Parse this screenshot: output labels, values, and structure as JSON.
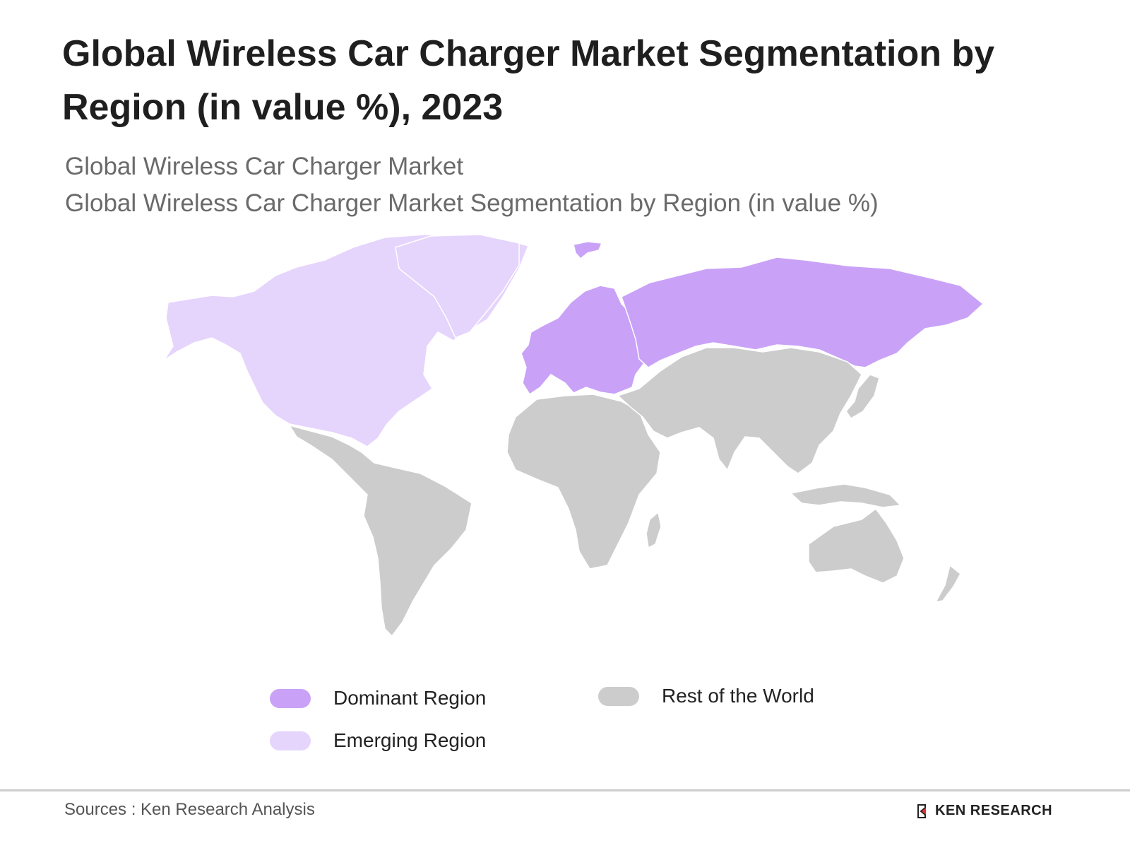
{
  "title": "Global Wireless Car Charger Market Segmentation by Region (in value %), 2023",
  "subtitle_line1": "Global Wireless Car Charger Market",
  "subtitle_line2": "Global Wireless Car Charger Market Segmentation by Region (in value %)",
  "regions": {
    "north_america": "emerging",
    "europe": "dominant",
    "russia_asia_north": "dominant",
    "latin_america": "rest",
    "africa": "rest",
    "middle_east_asia": "rest",
    "oceania": "rest"
  },
  "legend": {
    "items": [
      {
        "key": "dominant",
        "label": "Dominant Region",
        "color": "#c9a2f7"
      },
      {
        "key": "emerging",
        "label": "Emerging Region",
        "color": "#e5d4fc"
      },
      {
        "key": "rest",
        "label": "Rest of the World",
        "color": "#cccccc"
      }
    ]
  },
  "source": "Sources : Ken Research Analysis",
  "brand": "KEN RESEARCH"
}
